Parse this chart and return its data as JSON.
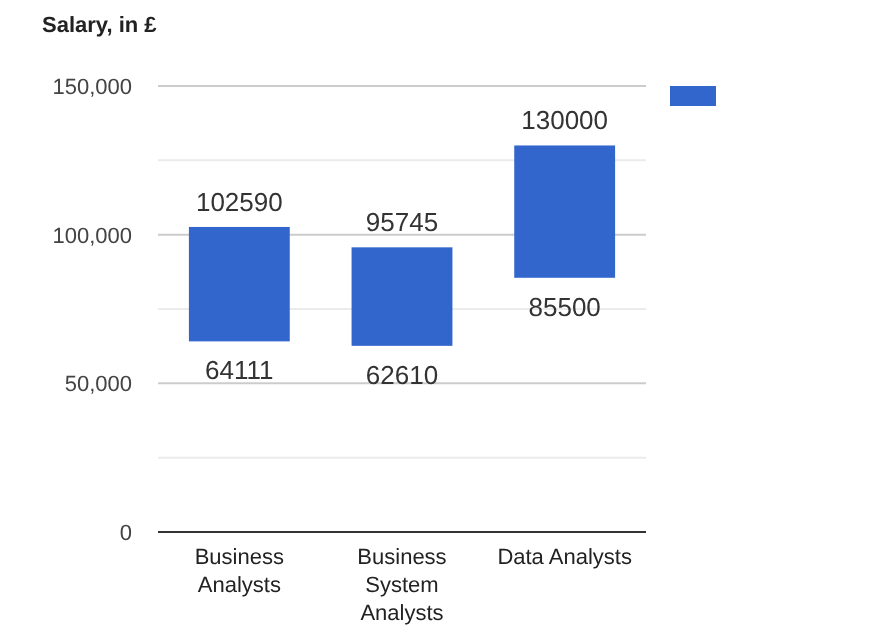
{
  "chart_data": {
    "type": "bar",
    "title": "Salary, in £",
    "categories": [
      "Business Analysts",
      "Business System Analysts",
      "Data Analysts"
    ],
    "base": [
      64111,
      62610,
      85500
    ],
    "values": [
      38479,
      33135,
      44500
    ],
    "color": "#3366cc",
    "ylim": [
      0,
      150000
    ],
    "yticks": [
      {
        "value": 0,
        "label": "0"
      },
      {
        "value": 25000,
        "label": null
      },
      {
        "value": 50000,
        "label": "50,000"
      },
      {
        "value": 75000,
        "label": null
      },
      {
        "value": 100000,
        "label": "100,000"
      },
      {
        "value": 125000,
        "label": null
      },
      {
        "value": 150000,
        "label": "150,000"
      }
    ],
    "grid": "y",
    "annotations": [
      {
        "text": "102590",
        "x": "Business Analysts",
        "y": 102590
      },
      {
        "text": "64111",
        "x": "Business Analysts",
        "y": 64111
      },
      {
        "text": "95745",
        "x": "Business System Analysts",
        "y": 95745
      },
      {
        "text": "62610",
        "x": "Business System Analysts",
        "y": 62610
      },
      {
        "text": "130000",
        "x": "Data Analysts",
        "y": 130000
      },
      {
        "text": "85500",
        "x": "Data Analysts",
        "y": 85500
      }
    ]
  }
}
